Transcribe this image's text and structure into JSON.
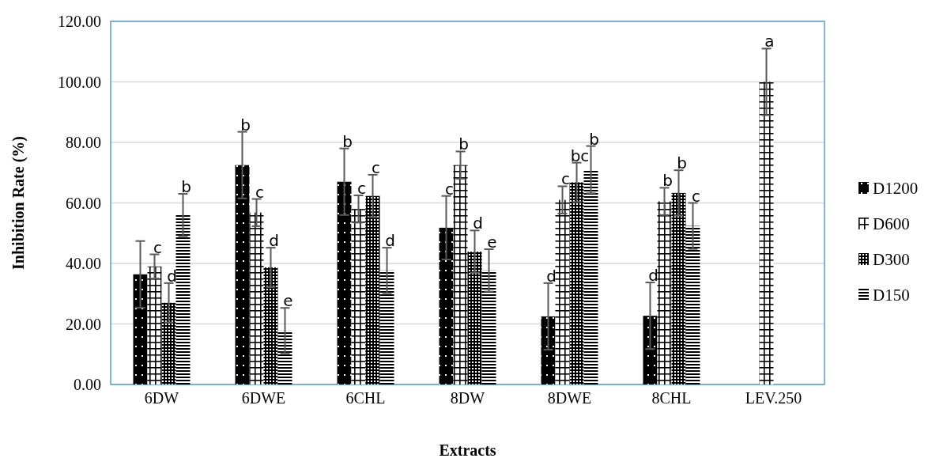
{
  "chart_data": {
    "type": "bar",
    "xlabel": "Extracts",
    "ylabel": "Inhibition Rate (%)",
    "categories": [
      "6DW",
      "6DWE",
      "6CHL",
      "8DW",
      "8DWE",
      "8CHL",
      "LEV.250"
    ],
    "series": [
      {
        "name": "D1200",
        "color": "#000000",
        "values": [
          36.4,
          72.5,
          67.0,
          51.8,
          22.5,
          22.7,
          null
        ],
        "errors": [
          11,
          11,
          11,
          10.5,
          11,
          11,
          null
        ],
        "value_labels": [
          null,
          "b",
          "b",
          "c",
          "d",
          "d",
          null
        ]
      },
      {
        "name": "D600",
        "color": "#000000",
        "values": [
          39.0,
          56.8,
          58.0,
          72.5,
          61.0,
          60.5,
          100.0
        ],
        "errors": [
          4,
          4.5,
          4.5,
          4.5,
          4.5,
          4.5,
          11
        ],
        "value_labels": [
          "c",
          "c",
          "c",
          "b",
          "c",
          "b",
          "a"
        ]
      },
      {
        "name": "D300",
        "color": "#000000",
        "values": [
          27.0,
          38.7,
          62.3,
          43.9,
          66.8,
          63.3,
          null
        ],
        "errors": [
          6.5,
          6.5,
          7,
          7,
          6.5,
          7.5,
          null
        ],
        "value_labels": [
          "d",
          "d",
          "c",
          "d",
          "bc",
          "b",
          null
        ]
      },
      {
        "name": "D150",
        "color": "#000000",
        "values": [
          56.0,
          17.8,
          37.7,
          37.7,
          71.0,
          52.4,
          null
        ],
        "errors": [
          7,
          7.5,
          7.5,
          7,
          7.8,
          7.6,
          null
        ],
        "value_labels": [
          "b",
          "e",
          "d",
          "e",
          "b",
          "c",
          null
        ]
      }
    ],
    "ylim": [
      0,
      120
    ],
    "yticks": [
      {
        "value": 0,
        "label": "0.00"
      },
      {
        "value": 20,
        "label": "20.00"
      },
      {
        "value": 40,
        "label": "40.00"
      },
      {
        "value": 60,
        "label": "60.00"
      },
      {
        "value": 80,
        "label": "80.00"
      },
      {
        "value": 100,
        "label": "100.00"
      },
      {
        "value": 120,
        "label": "120.00"
      }
    ],
    "grid": "y",
    "legend": "right"
  }
}
